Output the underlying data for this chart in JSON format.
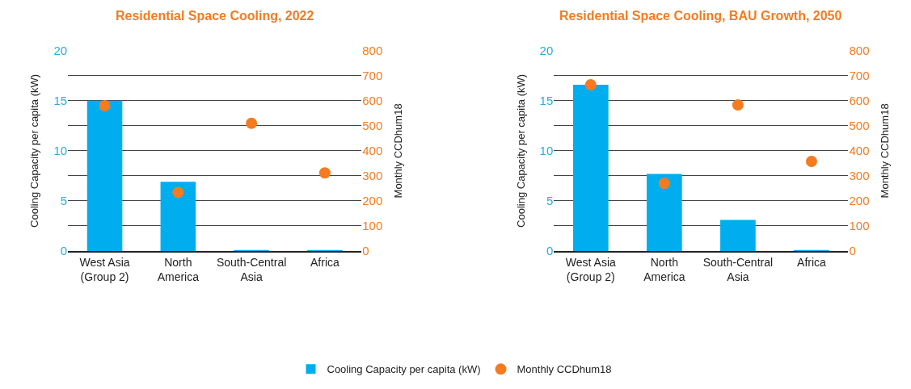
{
  "chart_data": [
    {
      "type": "bar",
      "title": "Residential Space Cooling, 2022",
      "categories": [
        "West Asia\n(Group 2)",
        "North\nAmerica",
        "South-Central\nAsia",
        "Africa"
      ],
      "ylabel": "Cooling Capacity per capita (kW)",
      "y2label": "Monthly CCDhum18",
      "ylim": [
        0,
        20
      ],
      "yticks": [
        0,
        {
          "value": 2.5,
          "label": null
        },
        5,
        {
          "value": 7.5,
          "label": null
        },
        10,
        {
          "value": 12.5,
          "label": null
        },
        15,
        {
          "value": 17.5,
          "label": null
        },
        20
      ],
      "y2lim": [
        0,
        800
      ],
      "y2ticks": [
        0,
        100,
        200,
        300,
        400,
        500,
        600,
        700,
        800
      ],
      "grid": "y",
      "legend": "bottom",
      "series": [
        {
          "name": "Cooling Capacity per capita (kW)",
          "color": "#00aeef",
          "values": [
            15.0,
            6.9,
            0.1,
            0.1
          ]
        },
        {
          "name": "Monthly CCDhum18",
          "type": "scatter",
          "axis": "y2",
          "marker": "circle",
          "color": "#f47b20",
          "values": [
            580,
            234,
            510,
            312
          ]
        }
      ]
    },
    {
      "type": "bar",
      "title": "Residential Space Cooling, BAU Growth, 2050",
      "categories": [
        "West Asia\n(Group 2)",
        "North\nAmerica",
        "South-Central\nAsia",
        "Africa"
      ],
      "ylabel": "Cooling Capacity per capita (kW)",
      "y2label": "Monthly CCDhum18",
      "ylim": [
        0,
        20
      ],
      "yticks": [
        0,
        {
          "value": 2.5,
          "label": null
        },
        5,
        {
          "value": 7.5,
          "label": null
        },
        10,
        {
          "value": 12.5,
          "label": null
        },
        15,
        {
          "value": 17.5,
          "label": null
        },
        20
      ],
      "y2lim": [
        0,
        800
      ],
      "y2ticks": [
        0,
        100,
        200,
        300,
        400,
        500,
        600,
        700,
        800
      ],
      "grid": "y",
      "series": [
        {
          "color": "#00aeef",
          "values": [
            16.6,
            7.7,
            3.1,
            0.1
          ]
        },
        {
          "type": "scatter",
          "axis": "y2",
          "marker": "circle",
          "color": "#f47b20",
          "values": [
            664,
            270,
            583,
            358
          ]
        }
      ]
    }
  ]
}
